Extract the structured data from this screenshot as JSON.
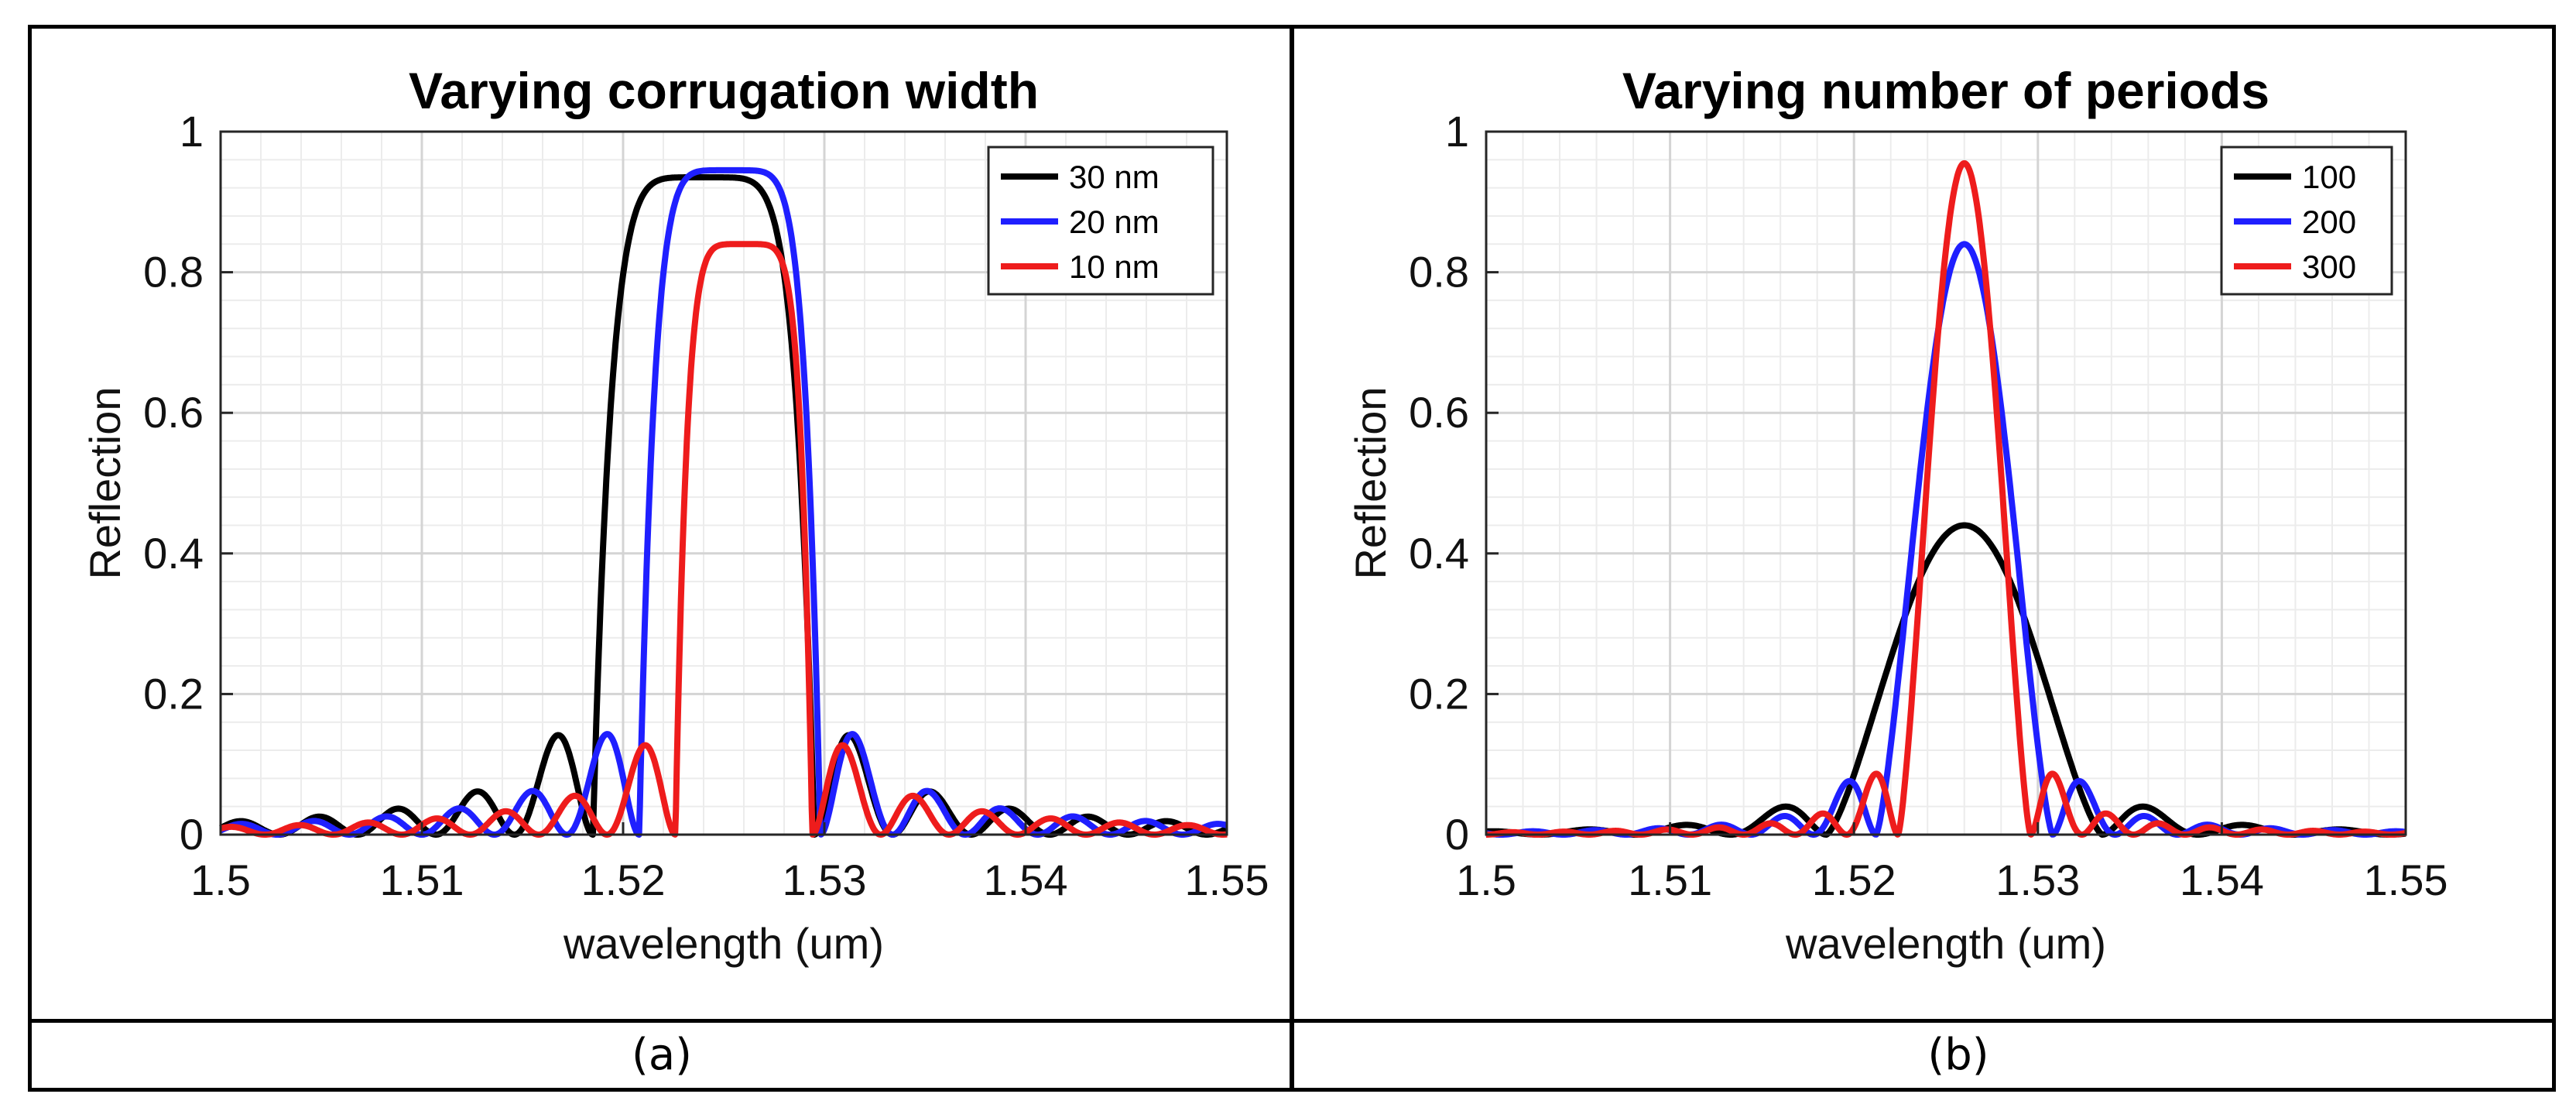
{
  "captions": {
    "a": "(a)",
    "b": "(b)"
  },
  "chart_data": [
    {
      "type": "line",
      "title": "Varying corrugation width",
      "xlabel": "wavelength (um)",
      "ylabel": "Reflection",
      "xlim": [
        1.5,
        1.55
      ],
      "ylim": [
        0,
        1
      ],
      "xticks": [
        1.5,
        1.51,
        1.52,
        1.53,
        1.54,
        1.55
      ],
      "xtick_labels": [
        "1.5",
        "1.51",
        "1.52",
        "1.53",
        "1.54",
        "1.55"
      ],
      "yticks": [
        0,
        0.2,
        0.4,
        0.6,
        0.8,
        1
      ],
      "ytick_labels": [
        "0",
        "0.2",
        "0.4",
        "0.6",
        "0.8",
        "1"
      ],
      "grid": true,
      "legend": "top-right",
      "series": [
        {
          "name": "30 nm",
          "color": "#000000",
          "kind": "width",
          "center": 1.524,
          "peak": 0.935,
          "half_width": 0.0055,
          "sidelobe_period": 0.0039
        },
        {
          "name": "20 nm",
          "color": "#1f1fff",
          "kind": "width",
          "center": 1.5253,
          "peak": 0.945,
          "half_width": 0.0045,
          "sidelobe_period": 0.0036
        },
        {
          "name": "10 nm",
          "color": "#ee1c1c",
          "kind": "width",
          "center": 1.526,
          "peak": 0.84,
          "half_width": 0.0034,
          "sidelobe_period": 0.0034
        }
      ]
    },
    {
      "type": "line",
      "title": "Varying number of periods",
      "xlabel": "wavelength (um)",
      "ylabel": "Reflection",
      "xlim": [
        1.5,
        1.55
      ],
      "ylim": [
        0,
        1
      ],
      "xticks": [
        1.5,
        1.51,
        1.52,
        1.53,
        1.54,
        1.55
      ],
      "xtick_labels": [
        "1.5",
        "1.51",
        "1.52",
        "1.53",
        "1.54",
        "1.55"
      ],
      "yticks": [
        0,
        0.2,
        0.4,
        0.6,
        0.8,
        1
      ],
      "ytick_labels": [
        "0",
        "0.2",
        "0.4",
        "0.6",
        "0.8",
        "1"
      ],
      "grid": true,
      "legend": "top-right",
      "series": [
        {
          "name": "100",
          "color": "#000000",
          "kind": "periods",
          "center": 1.526,
          "peak": 0.44,
          "half_width": 0.0075,
          "sidelobe_period": 0.0052
        },
        {
          "name": "200",
          "color": "#1f1fff",
          "kind": "periods",
          "center": 1.526,
          "peak": 0.84,
          "half_width": 0.0048,
          "sidelobe_period": 0.0034
        },
        {
          "name": "300",
          "color": "#ee1c1c",
          "kind": "periods",
          "center": 1.526,
          "peak": 0.955,
          "half_width": 0.0036,
          "sidelobe_period": 0.0028
        }
      ]
    }
  ]
}
